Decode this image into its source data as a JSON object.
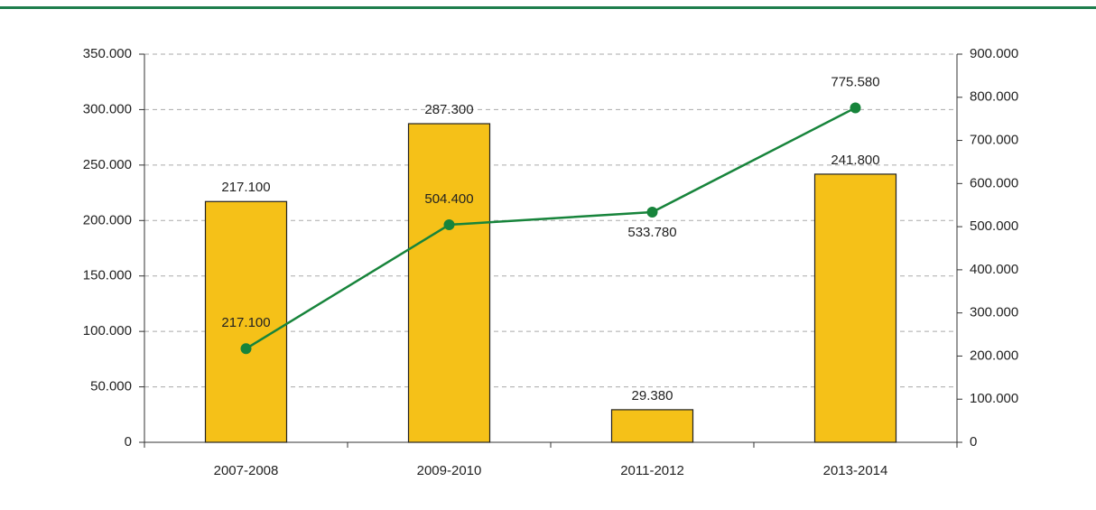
{
  "chart_data": {
    "type": "bar",
    "categories": [
      "2007-2008",
      "2009-2010",
      "2011-2012",
      "2013-2014"
    ],
    "series": [
      {
        "type": "bar",
        "color": "#f5c118",
        "values": [
          217100,
          287300,
          29380,
          241800
        ],
        "value_labels": [
          "217.100",
          "287.300",
          "29.380",
          "241.800"
        ]
      },
      {
        "type": "line",
        "axis": "y2",
        "color": "#17843b",
        "values": [
          217100,
          504400,
          533780,
          775580
        ],
        "value_labels": [
          "217.100",
          "504.400",
          "533.780",
          "775.580"
        ]
      }
    ],
    "ylim": [
      0,
      350000
    ],
    "yticks": [
      0,
      {
        "value": 50000,
        "label": "50.000"
      },
      {
        "value": 100000,
        "label": "100.000"
      },
      {
        "value": 150000,
        "label": "150.000"
      },
      {
        "value": 200000,
        "label": "200.000"
      },
      {
        "value": 250000,
        "label": "250.000"
      },
      {
        "value": 300000,
        "label": "300.000"
      },
      {
        "value": 350000,
        "label": "350.000"
      }
    ],
    "y2lim": [
      0,
      900000
    ],
    "y2ticks": [
      0,
      {
        "value": 100000,
        "label": "100.000"
      },
      {
        "value": 200000,
        "label": "200.000"
      },
      {
        "value": 300000,
        "label": "300.000"
      },
      {
        "value": 400000,
        "label": "400.000"
      },
      {
        "value": 500000,
        "label": "500.000"
      },
      {
        "value": 600000,
        "label": "600.000"
      },
      {
        "value": 700000,
        "label": "700.000"
      },
      {
        "value": 800000,
        "label": "800.000"
      },
      {
        "value": 900000,
        "label": "900.000"
      }
    ],
    "grid": true
  }
}
